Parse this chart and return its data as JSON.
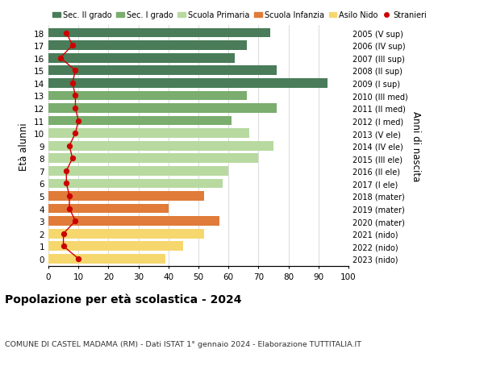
{
  "ages": [
    18,
    17,
    16,
    15,
    14,
    13,
    12,
    11,
    10,
    9,
    8,
    7,
    6,
    5,
    4,
    3,
    2,
    1,
    0
  ],
  "anni_nascita": [
    "2005 (V sup)",
    "2006 (IV sup)",
    "2007 (III sup)",
    "2008 (II sup)",
    "2009 (I sup)",
    "2010 (III med)",
    "2011 (II med)",
    "2012 (I med)",
    "2013 (V ele)",
    "2014 (IV ele)",
    "2015 (III ele)",
    "2016 (II ele)",
    "2017 (I ele)",
    "2018 (mater)",
    "2019 (mater)",
    "2020 (mater)",
    "2021 (nido)",
    "2022 (nido)",
    "2023 (nido)"
  ],
  "bar_values": [
    74,
    66,
    62,
    76,
    93,
    66,
    76,
    61,
    67,
    75,
    70,
    60,
    58,
    52,
    40,
    57,
    52,
    45,
    39
  ],
  "bar_colors": [
    "#4a7c59",
    "#4a7c59",
    "#4a7c59",
    "#4a7c59",
    "#4a7c59",
    "#7aad6e",
    "#7aad6e",
    "#7aad6e",
    "#b8d9a0",
    "#b8d9a0",
    "#b8d9a0",
    "#b8d9a0",
    "#b8d9a0",
    "#e07b39",
    "#e07b39",
    "#e07b39",
    "#f5d76e",
    "#f5d76e",
    "#f5d76e"
  ],
  "stranieri": [
    6,
    8,
    4,
    9,
    8,
    9,
    9,
    10,
    9,
    7,
    8,
    6,
    6,
    7,
    7,
    9,
    5,
    5,
    10
  ],
  "stranieri_color": "#cc0000",
  "legend_labels": [
    "Sec. II grado",
    "Sec. I grado",
    "Scuola Primaria",
    "Scuola Infanzia",
    "Asilo Nido",
    "Stranieri"
  ],
  "legend_colors": [
    "#4a7c59",
    "#7aad6e",
    "#b8d9a0",
    "#e07b39",
    "#f5d76e",
    "#cc0000"
  ],
  "title": "Popolazione per età scolastica - 2024",
  "subtitle": "COMUNE DI CASTEL MADAMA (RM) - Dati ISTAT 1° gennaio 2024 - Elaborazione TUTTITALIA.IT",
  "ylabel_left": "Età alunni",
  "ylabel_right": "Anni di nascita",
  "xlim": [
    0,
    100
  ],
  "xticks": [
    0,
    10,
    20,
    30,
    40,
    50,
    60,
    70,
    80,
    90,
    100
  ],
  "bg_color": "#ffffff",
  "bar_height": 0.75,
  "grid_color": "#cccccc"
}
